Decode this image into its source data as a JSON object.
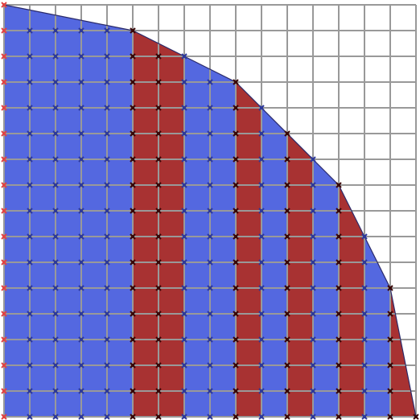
{
  "grid": {
    "cols": 16,
    "rows": 16
  },
  "boundary_heights": [
    16,
    15,
    14,
    13,
    12,
    11,
    11,
    10,
    9,
    8,
    7,
    6,
    5,
    4,
    2,
    0
  ],
  "boundary_points": [
    [
      0,
      16
    ],
    [
      5,
      15
    ],
    [
      9,
      13
    ],
    [
      12,
      10
    ],
    [
      13,
      9
    ],
    [
      14,
      7
    ],
    [
      15,
      5
    ],
    [
      16,
      0
    ]
  ],
  "stripes": [
    {
      "from": 0,
      "to": 5,
      "kind": "blue"
    },
    {
      "from": 5,
      "to": 7,
      "kind": "red"
    },
    {
      "from": 7,
      "to": 9,
      "kind": "blue"
    },
    {
      "from": 9,
      "to": 10,
      "kind": "red"
    },
    {
      "from": 10,
      "to": 11,
      "kind": "blue"
    },
    {
      "from": 11,
      "to": 12,
      "kind": "red"
    },
    {
      "from": 12,
      "to": 13,
      "kind": "blue"
    },
    {
      "from": 13,
      "to": 14,
      "kind": "red"
    },
    {
      "from": 14,
      "to": 15,
      "kind": "blue"
    },
    {
      "from": 15,
      "to": 16,
      "kind": "red"
    }
  ],
  "colors": {
    "blue_fill": "#5468e0",
    "blue_marker": "#2e3a9a",
    "red_fill": "#a83232",
    "red_marker": "#3a0808",
    "edge_marker": "#e04545",
    "grid_line": "#999999",
    "outline": "#2a2a6a",
    "background": "#ffffff"
  },
  "markers": {
    "glyph": "x-marker"
  }
}
